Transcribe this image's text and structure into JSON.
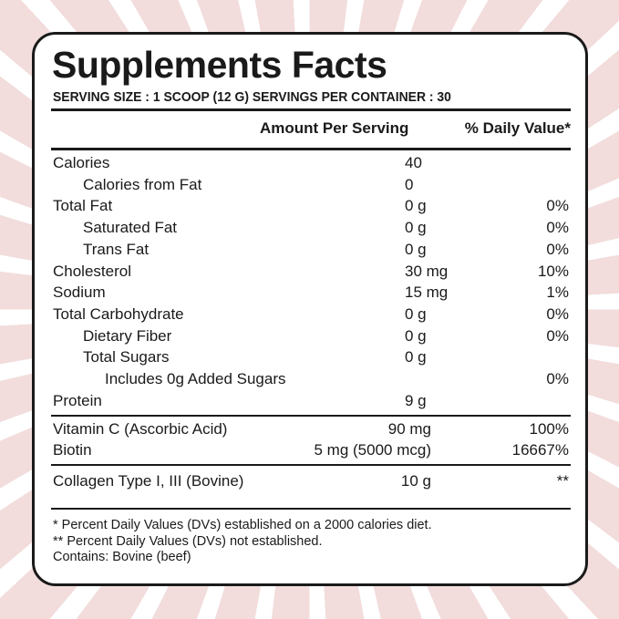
{
  "title": "Supplements Facts",
  "serving": "SERVING SIZE : 1 SCOOP (12 G)  SERVINGS PER CONTAINER : 30",
  "header": {
    "amount": "Amount Per Serving",
    "dv": "% Daily Value*"
  },
  "nutrients": [
    {
      "name": "Calories",
      "amount": "40",
      "dv": "",
      "indent": 0
    },
    {
      "name": "Calories from Fat",
      "amount": "0",
      "dv": "",
      "indent": 1
    },
    {
      "name": "Total Fat",
      "amount": "0 g",
      "dv": "0%",
      "indent": 0
    },
    {
      "name": "Saturated Fat",
      "amount": "0 g",
      "dv": "0%",
      "indent": 1
    },
    {
      "name": "Trans Fat",
      "amount": "0 g",
      "dv": "0%",
      "indent": 1
    },
    {
      "name": "Cholesterol",
      "amount": "30 mg",
      "dv": "10%",
      "indent": 0
    },
    {
      "name": "Sodium",
      "amount": "15 mg",
      "dv": "1%",
      "indent": 0
    },
    {
      "name": "Total Carbohydrate",
      "amount": "0 g",
      "dv": "0%",
      "indent": 0
    },
    {
      "name": "Dietary Fiber",
      "amount": "0 g",
      "dv": "0%",
      "indent": 1
    },
    {
      "name": "Total Sugars",
      "amount": "0 g",
      "dv": "",
      "indent": 1
    },
    {
      "name": "Includes 0g Added Sugars",
      "amount": "",
      "dv": "0%",
      "indent": 2
    },
    {
      "name": "Protein",
      "amount": "9 g",
      "dv": "",
      "indent": 0
    }
  ],
  "vitamins": [
    {
      "name": "Vitamin C (Ascorbic Acid)",
      "amount": "90 mg",
      "dv": "100%"
    },
    {
      "name": "Biotin",
      "amount": "5 mg (5000 mcg)",
      "dv": "16667%"
    }
  ],
  "other": [
    {
      "name": "Collagen Type I, III (Bovine)",
      "amount": "10 g",
      "dv": "**"
    }
  ],
  "footnotes": [
    "* Percent Daily Values (DVs) established on a 2000 calories diet.",
    "** Percent Daily Values (DVs) not established.",
    "Contains: Bovine (beef)"
  ],
  "colors": {
    "background": "#f2dcdc",
    "ink": "#1a1a1a"
  }
}
